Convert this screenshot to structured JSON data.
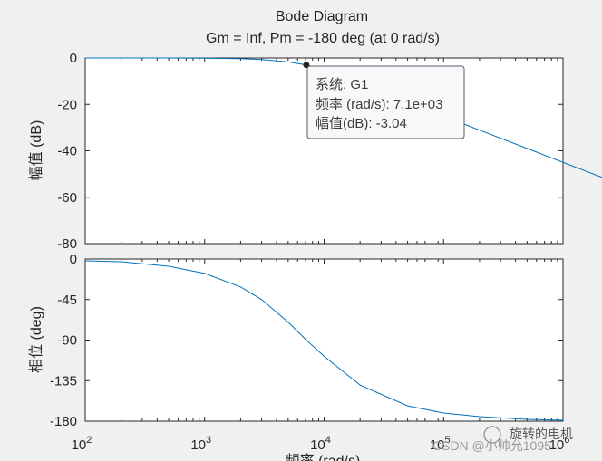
{
  "figure": {
    "title_line1": "Bode Diagram",
    "title_line2": "Gm = Inf,  Pm = -180 deg (at 0 rad/s)"
  },
  "chart_data": [
    {
      "type": "line",
      "panel": "magnitude",
      "ylabel": "幅值 (dB)",
      "xscale": "log",
      "xlim": [
        100,
        1000000
      ],
      "ylim": [
        -80,
        0
      ],
      "yticks": [
        0,
        -20,
        -40,
        -60,
        -80
      ],
      "grid": false,
      "series": [
        {
          "x": [
            100,
            200,
            500,
            1000,
            2000,
            3000,
            5000,
            7100,
            10000,
            20000,
            50000,
            100000,
            200000,
            500000
          ],
          "y": [
            0,
            0,
            0,
            -0.1,
            -0.3,
            -0.7,
            -1.7,
            -3.04,
            -5.2,
            -11.2,
            -19.2,
            -25.1,
            -31.1,
            -39.0
          ]
        }
      ],
      "color": "#0072bd",
      "datatip": {
        "x": 7100,
        "y": -3.04,
        "line1": "系统: G1",
        "line2": "频率 (rad/s): 7.1e+03",
        "line3": "幅值(dB): -3.04"
      }
    },
    {
      "type": "line",
      "panel": "phase",
      "ylabel": "相位 (deg)",
      "xlabel": "频率  (rad/s)",
      "xscale": "log",
      "xlim": [
        100,
        1000000
      ],
      "ylim": [
        -180,
        0
      ],
      "yticks": [
        0,
        -45,
        -90,
        -135,
        -180
      ],
      "xticks": [
        "10^2",
        "10^3",
        "10^4",
        "10^5",
        "10^6"
      ],
      "grid": false,
      "series": [
        {
          "x": [
            100,
            200,
            500,
            1000,
            2000,
            3000,
            5000,
            7100,
            10000,
            20000,
            50000,
            100000,
            200000,
            500000,
            1000000
          ],
          "y": [
            -2,
            -3,
            -8,
            -16,
            -31,
            -45,
            -70,
            -90,
            -108,
            -140,
            -163,
            -171,
            -175,
            -178,
            -179
          ]
        }
      ],
      "color": "#0072bd"
    }
  ],
  "watermark": {
    "line1": "旋转的电机",
    "line2": "CSDN @小帅允1095"
  }
}
